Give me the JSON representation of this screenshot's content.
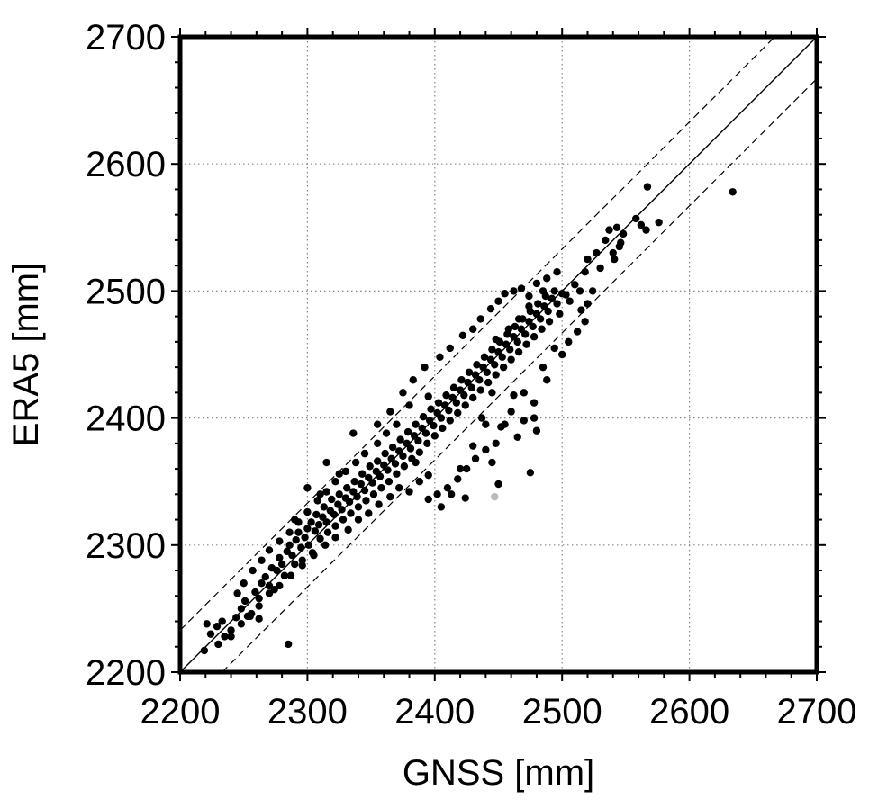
{
  "chart_data": {
    "type": "scatter",
    "title": "",
    "xlabel": "GNSS [mm]",
    "ylabel": "ERA5 [mm]",
    "xlim": [
      2200,
      2700
    ],
    "ylim": [
      2200,
      2700
    ],
    "xticks": [
      "2200",
      "2300",
      "2400",
      "2500",
      "2600",
      "2700"
    ],
    "yticks": [
      "2200",
      "2300",
      "2400",
      "2500",
      "2600",
      "2700"
    ],
    "grid": true,
    "reference_lines": [
      {
        "kind": "solid",
        "slope": 1,
        "intercept": 0
      },
      {
        "kind": "dashed",
        "slope": 1,
        "intercept": 33
      },
      {
        "kind": "dashed",
        "slope": 1,
        "intercept": -33
      }
    ],
    "colors": {
      "points": "#000000",
      "highlight": "#bbbbbb"
    },
    "series": [
      {
        "color": "#000000",
        "points": [
          [
            2219,
            2217
          ],
          [
            2221,
            2238
          ],
          [
            2224,
            2230
          ],
          [
            2229,
            2236
          ],
          [
            2233,
            2240
          ],
          [
            2240,
            2228
          ],
          [
            2244,
            2243
          ],
          [
            2248,
            2250
          ],
          [
            2251,
            2256
          ],
          [
            2253,
            2244
          ],
          [
            2256,
            2246
          ],
          [
            2259,
            2263
          ],
          [
            2262,
            2258
          ],
          [
            2264,
            2270
          ],
          [
            2262,
            2242
          ],
          [
            2267,
            2275
          ],
          [
            2270,
            2268
          ],
          [
            2272,
            2282
          ],
          [
            2274,
            2265
          ],
          [
            2276,
            2280
          ],
          [
            2278,
            2290
          ],
          [
            2280,
            2285
          ],
          [
            2282,
            2276
          ],
          [
            2284,
            2295
          ],
          [
            2286,
            2300
          ],
          [
            2288,
            2292
          ],
          [
            2290,
            2285
          ],
          [
            2291,
            2304
          ],
          [
            2293,
            2310
          ],
          [
            2295,
            2298
          ],
          [
            2296,
            2288
          ],
          [
            2298,
            2306
          ],
          [
            2300,
            2313
          ],
          [
            2301,
            2300
          ],
          [
            2303,
            2318
          ],
          [
            2304,
            2294
          ],
          [
            2306,
            2311
          ],
          [
            2307,
            2324
          ],
          [
            2309,
            2316
          ],
          [
            2310,
            2305
          ],
          [
            2312,
            2322
          ],
          [
            2313,
            2330
          ],
          [
            2315,
            2318
          ],
          [
            2316,
            2310
          ],
          [
            2318,
            2327
          ],
          [
            2319,
            2336
          ],
          [
            2321,
            2324
          ],
          [
            2322,
            2315
          ],
          [
            2324,
            2332
          ],
          [
            2325,
            2340
          ],
          [
            2327,
            2328
          ],
          [
            2328,
            2320
          ],
          [
            2330,
            2337
          ],
          [
            2331,
            2345
          ],
          [
            2333,
            2334
          ],
          [
            2334,
            2325
          ],
          [
            2336,
            2342
          ],
          [
            2337,
            2350
          ],
          [
            2339,
            2338
          ],
          [
            2340,
            2330
          ],
          [
            2342,
            2348
          ],
          [
            2343,
            2356
          ],
          [
            2345,
            2343
          ],
          [
            2346,
            2335
          ],
          [
            2348,
            2353
          ],
          [
            2349,
            2362
          ],
          [
            2351,
            2349
          ],
          [
            2352,
            2340
          ],
          [
            2354,
            2358
          ],
          [
            2355,
            2366
          ],
          [
            2357,
            2354
          ],
          [
            2358,
            2345
          ],
          [
            2360,
            2363
          ],
          [
            2361,
            2372
          ],
          [
            2363,
            2359
          ],
          [
            2364,
            2350
          ],
          [
            2366,
            2368
          ],
          [
            2367,
            2377
          ],
          [
            2369,
            2364
          ],
          [
            2370,
            2356
          ],
          [
            2372,
            2374
          ],
          [
            2373,
            2383
          ],
          [
            2375,
            2370
          ],
          [
            2376,
            2362
          ],
          [
            2378,
            2380
          ],
          [
            2379,
            2389
          ],
          [
            2381,
            2376
          ],
          [
            2382,
            2368
          ],
          [
            2384,
            2386
          ],
          [
            2385,
            2395
          ],
          [
            2387,
            2382
          ],
          [
            2388,
            2373
          ],
          [
            2390,
            2392
          ],
          [
            2391,
            2401
          ],
          [
            2393,
            2388
          ],
          [
            2394,
            2380
          ],
          [
            2396,
            2398
          ],
          [
            2397,
            2407
          ],
          [
            2399,
            2394
          ],
          [
            2400,
            2386
          ],
          [
            2402,
            2404
          ],
          [
            2403,
            2412
          ],
          [
            2405,
            2400
          ],
          [
            2406,
            2392
          ],
          [
            2408,
            2410
          ],
          [
            2409,
            2418
          ],
          [
            2411,
            2406
          ],
          [
            2412,
            2398
          ],
          [
            2414,
            2416
          ],
          [
            2415,
            2424
          ],
          [
            2417,
            2412
          ],
          [
            2418,
            2404
          ],
          [
            2420,
            2422
          ],
          [
            2421,
            2430
          ],
          [
            2423,
            2418
          ],
          [
            2424,
            2410
          ],
          [
            2426,
            2428
          ],
          [
            2427,
            2436
          ],
          [
            2429,
            2424
          ],
          [
            2430,
            2416
          ],
          [
            2432,
            2434
          ],
          [
            2433,
            2442
          ],
          [
            2435,
            2430
          ],
          [
            2436,
            2422
          ],
          [
            2438,
            2440
          ],
          [
            2439,
            2448
          ],
          [
            2441,
            2436
          ],
          [
            2442,
            2428
          ],
          [
            2444,
            2446
          ],
          [
            2445,
            2454
          ],
          [
            2447,
            2442
          ],
          [
            2448,
            2434
          ],
          [
            2450,
            2452
          ],
          [
            2451,
            2460
          ],
          [
            2453,
            2448
          ],
          [
            2454,
            2440
          ],
          [
            2456,
            2458
          ],
          [
            2457,
            2466
          ],
          [
            2459,
            2454
          ],
          [
            2460,
            2446
          ],
          [
            2462,
            2464
          ],
          [
            2463,
            2472
          ],
          [
            2465,
            2460
          ],
          [
            2466,
            2452
          ],
          [
            2468,
            2470
          ],
          [
            2469,
            2478
          ],
          [
            2471,
            2466
          ],
          [
            2472,
            2458
          ],
          [
            2474,
            2476
          ],
          [
            2475,
            2484
          ],
          [
            2477,
            2472
          ],
          [
            2478,
            2464
          ],
          [
            2480,
            2482
          ],
          [
            2481,
            2490
          ],
          [
            2483,
            2478
          ],
          [
            2484,
            2470
          ],
          [
            2486,
            2488
          ],
          [
            2487,
            2496
          ],
          [
            2489,
            2484
          ],
          [
            2490,
            2476
          ],
          [
            2492,
            2494
          ],
          [
            2494,
            2500
          ],
          [
            2496,
            2490
          ],
          [
            2498,
            2482
          ],
          [
            2500,
            2498
          ],
          [
            2503,
            2497
          ],
          [
            2506,
            2492
          ],
          [
            2510,
            2505
          ],
          [
            2514,
            2500
          ],
          [
            2518,
            2515
          ],
          [
            2520,
            2525
          ],
          [
            2524,
            2500
          ],
          [
            2527,
            2530
          ],
          [
            2530,
            2518
          ],
          [
            2534,
            2540
          ],
          [
            2537,
            2548
          ],
          [
            2540,
            2530
          ],
          [
            2543,
            2550
          ],
          [
            2546,
            2538
          ],
          [
            2558,
            2557
          ],
          [
            2562,
            2552
          ],
          [
            2566,
            2548
          ],
          [
            2567,
            2582
          ],
          [
            2576,
            2554
          ],
          [
            2634,
            2578
          ],
          [
            2548,
            2545
          ],
          [
            2545,
            2535
          ],
          [
            2541,
            2525
          ],
          [
            2520,
            2490
          ],
          [
            2515,
            2485
          ],
          [
            2500,
            2450
          ],
          [
            2488,
            2430
          ],
          [
            2478,
            2412
          ],
          [
            2470,
            2398
          ],
          [
            2462,
            2418
          ],
          [
            2455,
            2395
          ],
          [
            2448,
            2380
          ],
          [
            2440,
            2375
          ],
          [
            2432,
            2368
          ],
          [
            2425,
            2360
          ],
          [
            2418,
            2352
          ],
          [
            2410,
            2345
          ],
          [
            2402,
            2340
          ],
          [
            2395,
            2336
          ],
          [
            2388,
            2350
          ],
          [
            2380,
            2342
          ],
          [
            2372,
            2345
          ],
          [
            2365,
            2338
          ],
          [
            2356,
            2332
          ],
          [
            2348,
            2325
          ],
          [
            2340,
            2320
          ],
          [
            2332,
            2312
          ],
          [
            2322,
            2306
          ],
          [
            2314,
            2300
          ],
          [
            2305,
            2292
          ],
          [
            2296,
            2284
          ],
          [
            2287,
            2276
          ],
          [
            2278,
            2268
          ],
          [
            2270,
            2262
          ],
          [
            2262,
            2252
          ],
          [
            2255,
            2244
          ],
          [
            2248,
            2238
          ],
          [
            2240,
            2233
          ],
          [
            2235,
            2228
          ],
          [
            2230,
            2222
          ],
          [
            2285,
            2222
          ],
          [
            2424,
            2337
          ],
          [
            2450,
            2348
          ],
          [
            2475,
            2357
          ],
          [
            2445,
            2365
          ],
          [
            2420,
            2360
          ],
          [
            2413,
            2340
          ],
          [
            2430,
            2378
          ],
          [
            2405,
            2330
          ],
          [
            2395,
            2355
          ],
          [
            2385,
            2365
          ],
          [
            2440,
            2395
          ],
          [
            2460,
            2405
          ],
          [
            2470,
            2420
          ],
          [
            2485,
            2440
          ],
          [
            2494,
            2455
          ],
          [
            2505,
            2460
          ],
          [
            2512,
            2468
          ],
          [
            2518,
            2476
          ],
          [
            2480,
            2390
          ],
          [
            2465,
            2385
          ],
          [
            2478,
            2400
          ],
          [
            2452,
            2393
          ],
          [
            2437,
            2400
          ],
          [
            2445,
            2420
          ],
          [
            2395,
            2417
          ],
          [
            2380,
            2410
          ],
          [
            2370,
            2395
          ],
          [
            2362,
            2388
          ],
          [
            2355,
            2380
          ],
          [
            2345,
            2372
          ],
          [
            2338,
            2365
          ],
          [
            2330,
            2358
          ],
          [
            2322,
            2350
          ],
          [
            2315,
            2342
          ],
          [
            2308,
            2335
          ],
          [
            2300,
            2326
          ],
          [
            2293,
            2318
          ],
          [
            2286,
            2310
          ],
          [
            2278,
            2303
          ],
          [
            2270,
            2296
          ],
          [
            2264,
            2288
          ],
          [
            2257,
            2280
          ],
          [
            2250,
            2270
          ],
          [
            2245,
            2262
          ],
          [
            2336,
            2388
          ],
          [
            2315,
            2365
          ],
          [
            2300,
            2345
          ],
          [
            2290,
            2320
          ],
          [
            2310,
            2340
          ],
          [
            2325,
            2356
          ],
          [
            2355,
            2395
          ],
          [
            2365,
            2405
          ],
          [
            2375,
            2420
          ],
          [
            2383,
            2430
          ],
          [
            2392,
            2440
          ],
          [
            2404,
            2448
          ],
          [
            2412,
            2455
          ],
          [
            2422,
            2465
          ],
          [
            2430,
            2470
          ],
          [
            2436,
            2478
          ],
          [
            2444,
            2486
          ],
          [
            2450,
            2492
          ],
          [
            2455,
            2498
          ],
          [
            2462,
            2500
          ],
          [
            2468,
            2502
          ],
          [
            2474,
            2496
          ],
          [
            2480,
            2506
          ],
          [
            2488,
            2510
          ],
          [
            2496,
            2515
          ],
          [
            2485,
            2500
          ],
          [
            2474,
            2488
          ],
          [
            2466,
            2478
          ],
          [
            2458,
            2470
          ],
          [
            2448,
            2462
          ]
        ]
      },
      {
        "color": "#bbbbbb",
        "points": [
          [
            2447,
            2338
          ]
        ]
      }
    ]
  }
}
